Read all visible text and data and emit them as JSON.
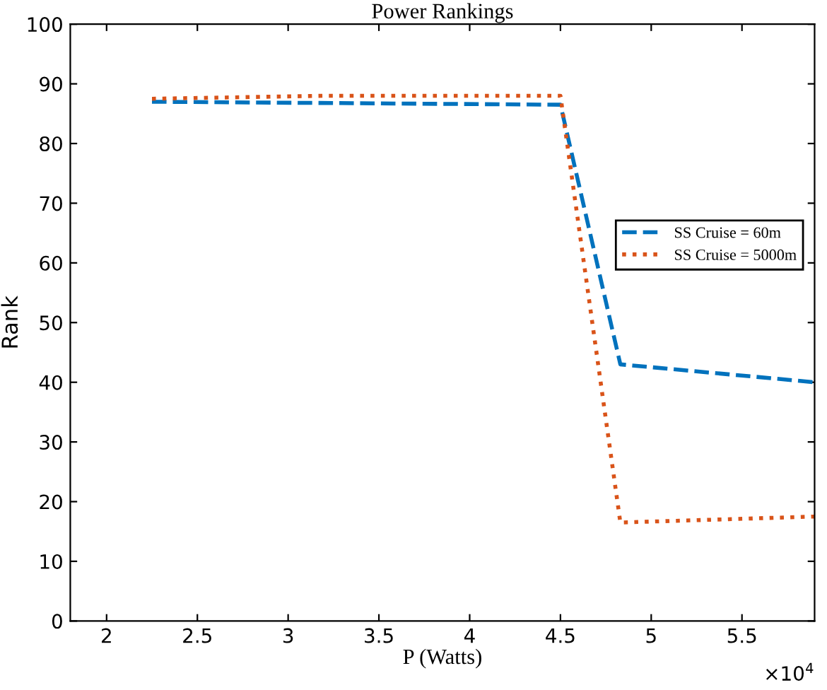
{
  "chart_data": {
    "type": "line",
    "title": "Power Rankings",
    "xlabel": "P (Watts)",
    "ylabel": "Rank",
    "annotations": [
      "×10$^{4}$"
    ],
    "series": [
      {
        "name": "SS Cruise = 60m",
        "color": "#0072bd",
        "line_style": "dashed",
        "x": [
          2.25,
          4.5,
          4.83,
          5.9
        ],
        "values": [
          87,
          86.5,
          43,
          40
        ]
      },
      {
        "name": "SS Cruise = 5000m",
        "color": "#d95319",
        "line_style": "dotted",
        "x": [
          2.25,
          3.2,
          4.5,
          4.83,
          5.9
        ],
        "values": [
          87.5,
          88,
          88,
          16.5,
          17.5
        ]
      }
    ],
    "xlim": [
      1.8,
      5.9
    ],
    "xticks": [
      2,
      2.5,
      3,
      3.5,
      4,
      4.5,
      5,
      5.5
    ],
    "ylim": [
      0,
      100
    ],
    "yticks": [
      0,
      10,
      20,
      30,
      40,
      50,
      60,
      70,
      80,
      90,
      100
    ],
    "grid": false,
    "legend": "right",
    "marker": "none"
  }
}
